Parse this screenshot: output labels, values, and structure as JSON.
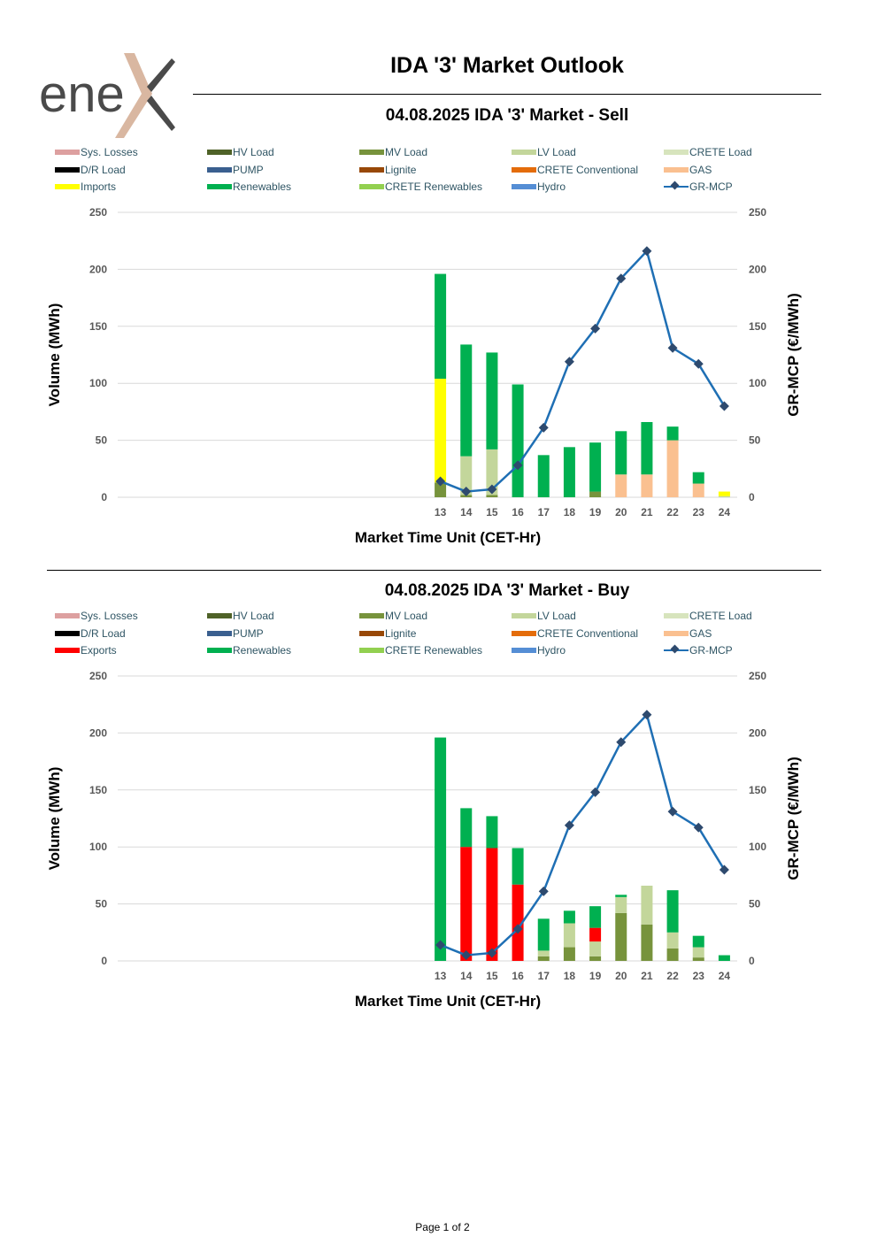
{
  "header": {
    "logo_text": "enex",
    "title": "IDA '3' Market Outlook",
    "footer": "Page 1 of 2"
  },
  "colors": {
    "Sys. Losses": "#dda0a0",
    "HV Load": "#4f6228",
    "MV Load": "#77933c",
    "LV Load": "#c3d69b",
    "CRETE Load": "#d7e4bd",
    "D/R Load": "#000000",
    "PUMP": "#3a5f8f",
    "Lignite": "#984807",
    "CRETE Conventional": "#e46c0a",
    "GAS": "#fac090",
    "Imports": "#ffff00",
    "Exports": "#ff0000",
    "Renewables": "#00b050",
    "CRETE Renewables": "#92d050",
    "Hydro": "#558ed5",
    "GR-MCP line": "#1f6fb4",
    "GR-MCP marker": "#2e4a6e"
  },
  "chart_data": [
    {
      "type": "bar",
      "title": "04.08.2025  IDA '3' Market - Sell",
      "legend": [
        "Sys. Losses",
        "HV Load",
        "MV Load",
        "LV Load",
        "CRETE Load",
        "D/R Load",
        "PUMP",
        "Lignite",
        "CRETE Conventional",
        "GAS",
        "Imports",
        "Renewables",
        "CRETE Renewables",
        "Hydro",
        "GR-MCP"
      ],
      "categories": [
        "13",
        "14",
        "15",
        "16",
        "17",
        "18",
        "19",
        "20",
        "21",
        "22",
        "23",
        "24"
      ],
      "xlabel": "Market Time Unit (CET-Hr)",
      "ylabel": "Volume (MWh)",
      "y2label": "GR-MCP (€/MWh)",
      "ylim": [
        0,
        250
      ],
      "yticks": [
        "0",
        "50",
        "100",
        "150",
        "200",
        "250"
      ],
      "series": [
        {
          "name": "MV Load",
          "values": [
            13,
            2,
            2,
            0,
            0,
            0,
            5,
            0,
            0,
            0,
            0,
            0
          ]
        },
        {
          "name": "LV Load",
          "values": [
            0,
            34,
            40,
            0,
            0,
            0,
            0,
            0,
            0,
            0,
            0,
            1
          ]
        },
        {
          "name": "GAS",
          "values": [
            0,
            0,
            0,
            0,
            0,
            0,
            0,
            20,
            20,
            50,
            12,
            0
          ]
        },
        {
          "name": "Imports",
          "values": [
            91,
            0,
            0,
            0,
            0,
            0,
            0,
            0,
            0,
            0,
            0,
            4
          ]
        },
        {
          "name": "Renewables",
          "values": [
            92,
            98,
            85,
            99,
            37,
            44,
            43,
            38,
            46,
            12,
            10,
            0
          ]
        }
      ],
      "line": {
        "name": "GR-MCP",
        "values": [
          14,
          5,
          7,
          28,
          61,
          119,
          148,
          192,
          216,
          131,
          117,
          80
        ]
      }
    },
    {
      "type": "bar",
      "title": "04.08.2025  IDA '3' Market - Buy",
      "legend": [
        "Sys. Losses",
        "HV Load",
        "MV Load",
        "LV Load",
        "CRETE Load",
        "D/R Load",
        "PUMP",
        "Lignite",
        "CRETE Conventional",
        "GAS",
        "Exports",
        "Renewables",
        "CRETE Renewables",
        "Hydro",
        "GR-MCP"
      ],
      "categories": [
        "13",
        "14",
        "15",
        "16",
        "17",
        "18",
        "19",
        "20",
        "21",
        "22",
        "23",
        "24"
      ],
      "xlabel": "Market Time Unit (CET-Hr)",
      "ylabel": "Volume (MWh)",
      "y2label": "GR-MCP (€/MWh)",
      "ylim": [
        0,
        250
      ],
      "yticks": [
        "0",
        "50",
        "100",
        "150",
        "200",
        "250"
      ],
      "series": [
        {
          "name": "MV Load",
          "values": [
            0,
            0,
            0,
            0,
            4,
            12,
            4,
            42,
            32,
            11,
            3,
            0
          ]
        },
        {
          "name": "LV Load",
          "values": [
            0,
            0,
            0,
            0,
            5,
            21,
            13,
            14,
            34,
            14,
            9,
            0
          ]
        },
        {
          "name": "Exports",
          "values": [
            0,
            100,
            99,
            67,
            0,
            0,
            12,
            0,
            0,
            0,
            0,
            0
          ]
        },
        {
          "name": "Renewables",
          "values": [
            196,
            34,
            28,
            32,
            28,
            11,
            19,
            2,
            0,
            37,
            10,
            5
          ]
        }
      ],
      "line": {
        "name": "GR-MCP",
        "values": [
          14,
          5,
          7,
          28,
          61,
          119,
          148,
          192,
          216,
          131,
          117,
          80
        ]
      }
    }
  ]
}
